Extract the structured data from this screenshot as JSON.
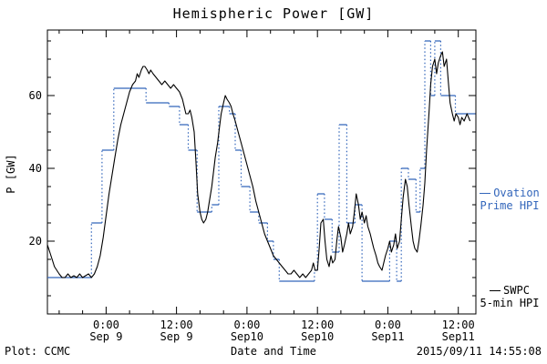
{
  "footer": {
    "credit": "Plot: CCMC",
    "timestamp": "2015/09/11 14:55:08"
  },
  "chart_data": {
    "type": "line",
    "title": "Hemispheric Power [GW]",
    "xlabel": "Date and Time",
    "ylabel": "P [GW]",
    "ylim": [
      0,
      78
    ],
    "xlim_hours": [
      0,
      73
    ],
    "grid": "off",
    "legend_position": "right-outside",
    "yticks": [
      {
        "value": 20,
        "label": "20"
      },
      {
        "value": 40,
        "label": "40"
      },
      {
        "value": 60,
        "label": "60"
      }
    ],
    "yticks_minor_step": 5,
    "xticks": [
      {
        "hour": 10,
        "time": "0:00",
        "date": "Sep 9"
      },
      {
        "hour": 22,
        "time": "12:00",
        "date": "Sep 9"
      },
      {
        "hour": 34,
        "time": "0:00",
        "date": "Sep10"
      },
      {
        "hour": 46,
        "time": "12:00",
        "date": "Sep10"
      },
      {
        "hour": 58,
        "time": "0:00",
        "date": "Sep11"
      },
      {
        "hour": 70,
        "time": "12:00",
        "date": "Sep11"
      }
    ],
    "xticks_minor_step": 4,
    "series": [
      {
        "id": "ovation",
        "name": "Ovation Prime HPI",
        "color": "#3366bb",
        "draw": "step",
        "line_style": "solid horizontals, dotted verticals",
        "points": [
          [
            0,
            10
          ],
          [
            7.5,
            25
          ],
          [
            9.3,
            45
          ],
          [
            11.3,
            62
          ],
          [
            16.8,
            58
          ],
          [
            20.7,
            57
          ],
          [
            22.5,
            52
          ],
          [
            24,
            45
          ],
          [
            25.5,
            28
          ],
          [
            28,
            30
          ],
          [
            29.2,
            57
          ],
          [
            31,
            55
          ],
          [
            32,
            45
          ],
          [
            33,
            35
          ],
          [
            34.5,
            28
          ],
          [
            36,
            25
          ],
          [
            37.5,
            20
          ],
          [
            38.5,
            15
          ],
          [
            39.5,
            9
          ],
          [
            45.5,
            12
          ],
          [
            46,
            33
          ],
          [
            47.2,
            26
          ],
          [
            48.5,
            17
          ],
          [
            49.7,
            52
          ],
          [
            51,
            25
          ],
          [
            52.4,
            30
          ],
          [
            53.6,
            9
          ],
          [
            58.3,
            20
          ],
          [
            59.5,
            9
          ],
          [
            60.3,
            40
          ],
          [
            61.5,
            37
          ],
          [
            62.8,
            28
          ],
          [
            63.5,
            40
          ],
          [
            64.3,
            75
          ],
          [
            65.3,
            60
          ],
          [
            66,
            75
          ],
          [
            67,
            60
          ],
          [
            69.5,
            55
          ],
          [
            72.9,
            55
          ]
        ]
      },
      {
        "id": "swpc",
        "name": "SWPC 5-min HPI",
        "color": "#000000",
        "draw": "line",
        "line_style": "solid",
        "points": [
          [
            0,
            19
          ],
          [
            0.4,
            17
          ],
          [
            0.8,
            15
          ],
          [
            1.2,
            13
          ],
          [
            1.6,
            12
          ],
          [
            2,
            11
          ],
          [
            2.5,
            10
          ],
          [
            3,
            10
          ],
          [
            3.5,
            11
          ],
          [
            4,
            10
          ],
          [
            4.5,
            10.5
          ],
          [
            5,
            10
          ],
          [
            5.5,
            11
          ],
          [
            6,
            10
          ],
          [
            6.5,
            10.5
          ],
          [
            7,
            11
          ],
          [
            7.5,
            10
          ],
          [
            8,
            11
          ],
          [
            8.5,
            13
          ],
          [
            9,
            16
          ],
          [
            9.5,
            21
          ],
          [
            10,
            27
          ],
          [
            10.5,
            33
          ],
          [
            11,
            38
          ],
          [
            11.5,
            43
          ],
          [
            12,
            48
          ],
          [
            12.5,
            52
          ],
          [
            13,
            55
          ],
          [
            13.5,
            58
          ],
          [
            14,
            61
          ],
          [
            14.5,
            63
          ],
          [
            15,
            64
          ],
          [
            15.3,
            66
          ],
          [
            15.6,
            65
          ],
          [
            16,
            67
          ],
          [
            16.3,
            68
          ],
          [
            16.6,
            68
          ],
          [
            17,
            67
          ],
          [
            17.3,
            66
          ],
          [
            17.6,
            67
          ],
          [
            18,
            66
          ],
          [
            18.5,
            65
          ],
          [
            19,
            64
          ],
          [
            19.5,
            63
          ],
          [
            20,
            64
          ],
          [
            20.5,
            63
          ],
          [
            21,
            62
          ],
          [
            21.5,
            63
          ],
          [
            22,
            62
          ],
          [
            22.5,
            61
          ],
          [
            23,
            59
          ],
          [
            23.3,
            57
          ],
          [
            23.6,
            55
          ],
          [
            24,
            55
          ],
          [
            24.3,
            56
          ],
          [
            24.6,
            54
          ],
          [
            25,
            50
          ],
          [
            25.3,
            42
          ],
          [
            25.6,
            33
          ],
          [
            26,
            28
          ],
          [
            26.3,
            26
          ],
          [
            26.6,
            25
          ],
          [
            27,
            26
          ],
          [
            27.3,
            28
          ],
          [
            27.6,
            31
          ],
          [
            28,
            35
          ],
          [
            28.3,
            39
          ],
          [
            28.6,
            43
          ],
          [
            29,
            47
          ],
          [
            29.3,
            51
          ],
          [
            29.6,
            55
          ],
          [
            30,
            58
          ],
          [
            30.3,
            60
          ],
          [
            30.6,
            59
          ],
          [
            31,
            58
          ],
          [
            31.3,
            57
          ],
          [
            31.6,
            55
          ],
          [
            32,
            53
          ],
          [
            32.5,
            50
          ],
          [
            33,
            47
          ],
          [
            33.5,
            44
          ],
          [
            34,
            41
          ],
          [
            34.5,
            38
          ],
          [
            35,
            35
          ],
          [
            35.5,
            31
          ],
          [
            36,
            28
          ],
          [
            36.5,
            25
          ],
          [
            37,
            22
          ],
          [
            37.5,
            20
          ],
          [
            38,
            18
          ],
          [
            38.5,
            16
          ],
          [
            39,
            15
          ],
          [
            39.5,
            14
          ],
          [
            40,
            13
          ],
          [
            40.5,
            12
          ],
          [
            41,
            11
          ],
          [
            41.5,
            11
          ],
          [
            42,
            12
          ],
          [
            42.5,
            11
          ],
          [
            43,
            10
          ],
          [
            43.5,
            11
          ],
          [
            44,
            10
          ],
          [
            44.5,
            11
          ],
          [
            45,
            12
          ],
          [
            45.3,
            14
          ],
          [
            45.6,
            12
          ],
          [
            46,
            12
          ],
          [
            46.3,
            18
          ],
          [
            46.6,
            25
          ],
          [
            47,
            26
          ],
          [
            47.3,
            20
          ],
          [
            47.6,
            15
          ],
          [
            48,
            13
          ],
          [
            48.3,
            16
          ],
          [
            48.6,
            14
          ],
          [
            49,
            15
          ],
          [
            49.3,
            20
          ],
          [
            49.6,
            24
          ],
          [
            50,
            21
          ],
          [
            50.3,
            17
          ],
          [
            50.6,
            19
          ],
          [
            51,
            22
          ],
          [
            51.3,
            25
          ],
          [
            51.6,
            22
          ],
          [
            52,
            24
          ],
          [
            52.3,
            28
          ],
          [
            52.6,
            33
          ],
          [
            53,
            30
          ],
          [
            53.3,
            26
          ],
          [
            53.6,
            28
          ],
          [
            54,
            25
          ],
          [
            54.3,
            27
          ],
          [
            54.6,
            24
          ],
          [
            55,
            22
          ],
          [
            55.3,
            20
          ],
          [
            55.6,
            18
          ],
          [
            56,
            16
          ],
          [
            56.3,
            14
          ],
          [
            56.6,
            13
          ],
          [
            57,
            12
          ],
          [
            57.3,
            14
          ],
          [
            57.6,
            16
          ],
          [
            58,
            18
          ],
          [
            58.3,
            20
          ],
          [
            58.6,
            17
          ],
          [
            59,
            19
          ],
          [
            59.3,
            22
          ],
          [
            59.6,
            18
          ],
          [
            60,
            20
          ],
          [
            60.3,
            26
          ],
          [
            60.6,
            32
          ],
          [
            61,
            37
          ],
          [
            61.3,
            35
          ],
          [
            61.6,
            30
          ],
          [
            62,
            24
          ],
          [
            62.3,
            20
          ],
          [
            62.6,
            18
          ],
          [
            63,
            17
          ],
          [
            63.3,
            20
          ],
          [
            63.6,
            24
          ],
          [
            64,
            30
          ],
          [
            64.3,
            36
          ],
          [
            64.6,
            45
          ],
          [
            65,
            55
          ],
          [
            65.3,
            63
          ],
          [
            65.6,
            68
          ],
          [
            66,
            70
          ],
          [
            66.3,
            66
          ],
          [
            66.6,
            69
          ],
          [
            67,
            71
          ],
          [
            67.3,
            72
          ],
          [
            67.6,
            68
          ],
          [
            68,
            70
          ],
          [
            68.3,
            64
          ],
          [
            68.6,
            58
          ],
          [
            69,
            55
          ],
          [
            69.3,
            53
          ],
          [
            69.6,
            55
          ],
          [
            70,
            54
          ],
          [
            70.3,
            52
          ],
          [
            70.6,
            54
          ],
          [
            71,
            53
          ],
          [
            71.5,
            55
          ],
          [
            72,
            53
          ]
        ]
      }
    ],
    "legend": {
      "ovation": {
        "lines": [
          "Ovation",
          "Prime HPI"
        ]
      },
      "swpc": {
        "lines": [
          "SWPC",
          "5-min HPI"
        ]
      }
    }
  }
}
